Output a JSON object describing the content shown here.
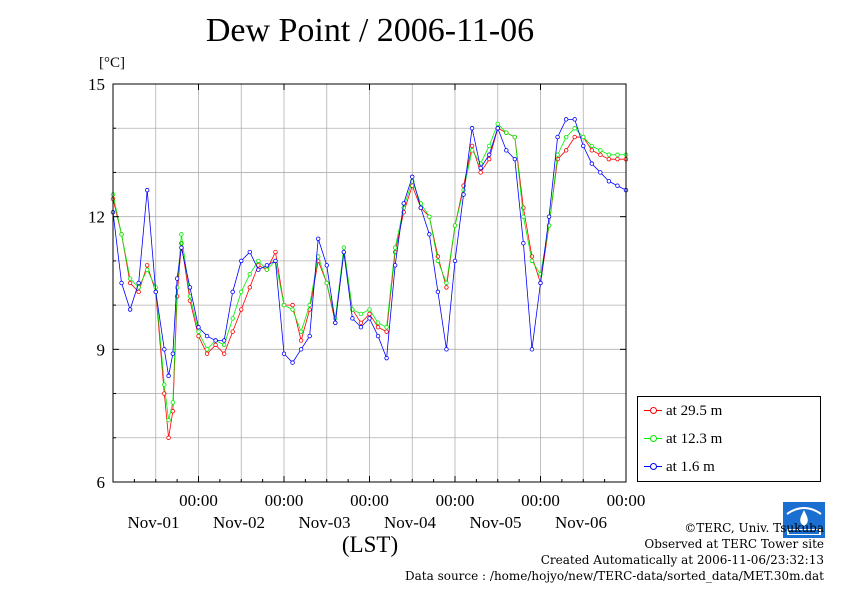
{
  "title": "Dew Point / 2006-11-06",
  "unit_label": "[°C]",
  "x_axis_label": "(LST)",
  "credits": {
    "copyright": "©TERC, Univ. Tsukuba",
    "observed": "Observed at TERC Tower site",
    "created": "Created Automatically at 2006-11-06/23:32:13",
    "source": "Data source : /home/hojyo/new/TERC-data/sorted_data/MET.30m.dat"
  },
  "colors": {
    "series_29_5": "#ff0000",
    "series_12_3": "#00ee00",
    "series_1_6": "#0000ff",
    "grid": "#b0b0b0",
    "logo": "#1b6fd1"
  },
  "chart_data": {
    "type": "line",
    "title": "Dew Point / 2006-11-06",
    "ylabel": "[°C]",
    "xlabel": "(LST)",
    "ylim": [
      6,
      15
    ],
    "yticks": [
      6,
      9,
      12,
      15
    ],
    "xlim": [
      0,
      6
    ],
    "x_unit": "days since Oct-31 00:00 LST",
    "xticks": [
      {
        "time": "00:00",
        "date": "Nov-01"
      },
      {
        "time": "00:00",
        "date": "Nov-02"
      },
      {
        "time": "00:00",
        "date": "Nov-03"
      },
      {
        "time": "00:00",
        "date": "Nov-04"
      },
      {
        "time": "00:00",
        "date": "Nov-05"
      },
      {
        "time": "00:00",
        "date": "Nov-06"
      }
    ],
    "grid": true,
    "legend_position": "outside-right-bottom",
    "x": [
      0.0,
      0.1,
      0.2,
      0.3,
      0.4,
      0.5,
      0.6,
      0.65,
      0.7,
      0.75,
      0.8,
      0.9,
      1.0,
      1.1,
      1.2,
      1.3,
      1.4,
      1.5,
      1.6,
      1.7,
      1.8,
      1.9,
      2.0,
      2.1,
      2.2,
      2.3,
      2.4,
      2.5,
      2.6,
      2.7,
      2.8,
      2.9,
      3.0,
      3.1,
      3.2,
      3.3,
      3.4,
      3.5,
      3.6,
      3.7,
      3.8,
      3.9,
      4.0,
      4.1,
      4.2,
      4.3,
      4.4,
      4.5,
      4.6,
      4.7,
      4.8,
      4.9,
      5.0,
      5.1,
      5.2,
      5.3,
      5.4,
      5.5,
      5.6,
      5.7,
      5.8,
      5.9,
      6.0
    ],
    "series": [
      {
        "name": "at 29.5 m",
        "color": "#ff0000",
        "values": [
          12.4,
          11.6,
          10.5,
          10.3,
          10.9,
          10.3,
          8.0,
          7.0,
          7.6,
          10.2,
          11.4,
          10.1,
          9.3,
          8.9,
          9.1,
          8.9,
          9.4,
          9.9,
          10.4,
          10.9,
          10.8,
          11.2,
          10.0,
          10.0,
          9.2,
          9.9,
          11.0,
          10.5,
          9.6,
          11.2,
          9.9,
          9.6,
          9.8,
          9.5,
          9.4,
          11.2,
          12.1,
          12.7,
          12.2,
          12.0,
          11.1,
          10.4,
          11.8,
          12.7,
          13.6,
          13.0,
          13.3,
          14.0,
          13.9,
          13.8,
          12.2,
          11.1,
          10.5,
          11.8,
          13.3,
          13.5,
          13.8,
          13.8,
          13.5,
          13.4,
          13.3,
          13.3,
          13.3
        ]
      },
      {
        "name": "at 12.3 m",
        "color": "#00ee00",
        "values": [
          12.5,
          11.6,
          10.6,
          10.4,
          10.8,
          10.4,
          8.2,
          7.4,
          7.8,
          10.4,
          11.6,
          10.2,
          9.4,
          9.0,
          9.2,
          9.1,
          9.7,
          10.3,
          10.7,
          11.0,
          10.8,
          11.0,
          10.0,
          9.9,
          9.4,
          10.0,
          11.1,
          10.5,
          9.7,
          11.3,
          9.9,
          9.8,
          9.9,
          9.6,
          9.5,
          11.3,
          12.2,
          12.8,
          12.3,
          12.0,
          11.0,
          10.5,
          11.8,
          12.6,
          13.5,
          13.2,
          13.6,
          14.1,
          13.9,
          13.8,
          12.0,
          11.0,
          10.7,
          11.8,
          13.4,
          13.8,
          14.0,
          13.8,
          13.6,
          13.5,
          13.4,
          13.4,
          13.4
        ]
      },
      {
        "name": "at 1.6 m",
        "color": "#0000ff",
        "values": [
          12.1,
          10.5,
          9.9,
          10.5,
          12.6,
          10.3,
          9.0,
          8.4,
          8.9,
          10.6,
          11.3,
          10.4,
          9.5,
          9.3,
          9.2,
          9.2,
          10.3,
          11.0,
          11.2,
          10.8,
          10.9,
          11.0,
          8.9,
          8.7,
          9.0,
          9.3,
          11.5,
          10.9,
          9.6,
          11.2,
          9.7,
          9.5,
          9.7,
          9.3,
          8.8,
          10.9,
          12.3,
          12.9,
          12.2,
          11.6,
          10.3,
          9.0,
          11.0,
          12.5,
          14.0,
          13.1,
          13.4,
          14.0,
          13.5,
          13.3,
          11.4,
          9.0,
          10.5,
          12.0,
          13.8,
          14.2,
          14.2,
          13.6,
          13.2,
          13.0,
          12.8,
          12.7,
          12.6
        ]
      }
    ]
  }
}
